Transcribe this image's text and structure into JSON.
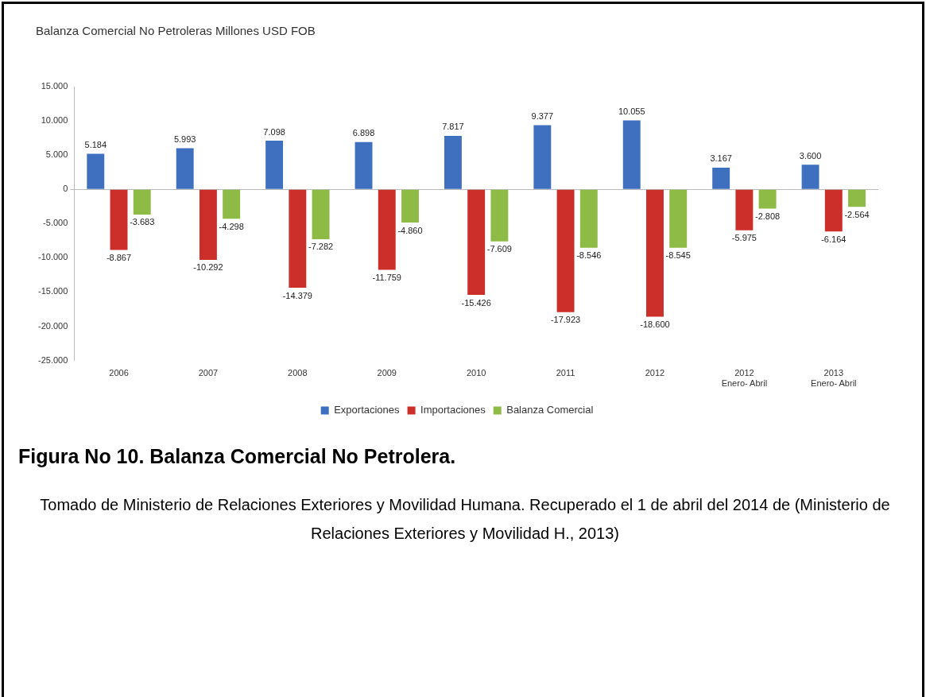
{
  "chart_data": {
    "type": "bar",
    "title": "Balanza Comercial No Petroleras Millones USD FOB",
    "categories": [
      "2006",
      "2007",
      "2008",
      "2009",
      "2010",
      "2011",
      "2012",
      "2012\nEnero- Abril",
      "2013\nEnero- Abril"
    ],
    "series": [
      {
        "name": "Exportaciones",
        "color": "#3f6fbf",
        "values": [
          5184,
          5993,
          7098,
          6898,
          7817,
          9377,
          10055,
          3167,
          3600
        ],
        "value_labels": [
          "5.184",
          "5.993",
          "7.098",
          "6.898",
          "7.817",
          "9.377",
          "10.055",
          "3.167",
          "3.600"
        ]
      },
      {
        "name": "Importaciones",
        "color": "#cc2e2a",
        "values": [
          -8867,
          -10292,
          -14379,
          -11759,
          -15426,
          -17923,
          -18600,
          -5975,
          -6164
        ],
        "value_labels": [
          "-8.867",
          "-10.292",
          "-14.379",
          "-11.759",
          "-15.426",
          "-17.923",
          "-18.600",
          "-5.975",
          "-6.164"
        ]
      },
      {
        "name": "Balanza Comercial",
        "color": "#8dbb45",
        "values": [
          -3683,
          -4298,
          -7282,
          -4860,
          -7609,
          -8546,
          -8545,
          -2808,
          -2564
        ],
        "value_labels": [
          "-3.683",
          "-4.298",
          "-7.282",
          "-4.860",
          "-7.609",
          "-8.546",
          "-8.545",
          "-2.808",
          "-2.564"
        ]
      }
    ],
    "ylim": [
      -25000,
      15000
    ],
    "yticks": [
      {
        "value": -25000,
        "label": "-25.000"
      },
      {
        "value": -20000,
        "label": "-20.000"
      },
      {
        "value": -15000,
        "label": "-15.000"
      },
      {
        "value": -10000,
        "label": "-10.000"
      },
      {
        "value": -5000,
        "label": "-5.000"
      },
      0,
      {
        "value": 5000,
        "label": "5.000"
      },
      {
        "value": 10000,
        "label": "10.000"
      },
      {
        "value": 15000,
        "label": "15.000"
      }
    ],
    "legend": "bottom",
    "annotations": [
      "Figura No 10. Balanza Comercial No Petrolera.",
      "Tomado de Ministerio de Relaciones Exteriores y Movilidad Humana. Recuperado el 1 de abril del 2014 de (Ministerio de Relaciones Exteriores y Movilidad H., 2013)"
    ]
  }
}
